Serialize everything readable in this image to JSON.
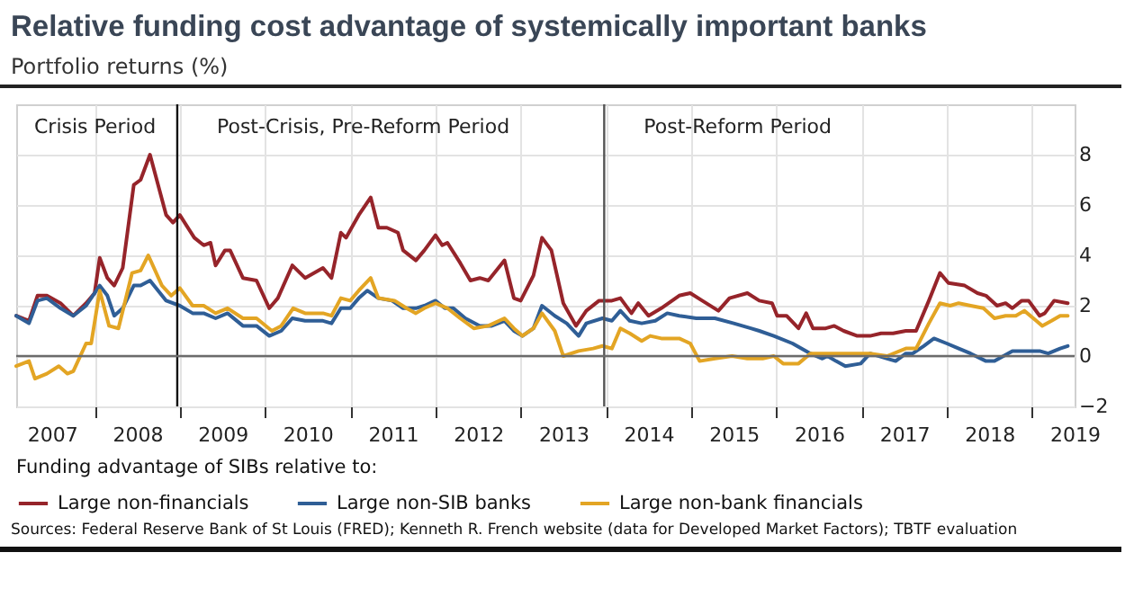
{
  "chart_data": {
    "type": "line",
    "title": "Relative funding cost advantage of systemically important banks",
    "subtitle": "Portfolio returns (%)",
    "legend_title": "Funding advantage of SIBs relative to:",
    "annotations": [
      "Crisis Period",
      "Post-Crisis, Pre-Reform Period",
      "Post-Reform Period",
      "Sources: Federal Reserve Bank of St Louis (FRED); Kenneth R. French website (data for Developed Market Factors); TBTF evaluation"
    ],
    "series": [
      {
        "name": "Large non-financials",
        "color": "#96242a",
        "x": [
          2007.08,
          2007.23,
          2007.33,
          2007.44,
          2007.6,
          2007.75,
          2007.9,
          2008.0,
          2008.06,
          2008.15,
          2008.23,
          2008.33,
          2008.46,
          2008.54,
          2008.65,
          2008.84,
          2008.92,
          2009.0,
          2009.17,
          2009.28,
          2009.36,
          2009.42,
          2009.53,
          2009.59,
          2009.74,
          2009.9,
          2010.05,
          2010.15,
          2010.32,
          2010.47,
          2010.68,
          2010.78,
          2010.89,
          2010.95,
          2011.1,
          2011.24,
          2011.33,
          2011.43,
          2011.56,
          2011.62,
          2011.77,
          2011.87,
          2012.0,
          2012.08,
          2012.14,
          2012.29,
          2012.41,
          2012.52,
          2012.62,
          2012.81,
          2012.92,
          2013.0,
          2013.15,
          2013.25,
          2013.36,
          2013.5,
          2013.65,
          2013.77,
          2013.92,
          2014.07,
          2014.17,
          2014.3,
          2014.38,
          2014.5,
          2014.65,
          2014.86,
          2014.99,
          2015.13,
          2015.32,
          2015.45,
          2015.66,
          2015.8,
          2015.95,
          2016.01,
          2016.12,
          2016.26,
          2016.35,
          2016.43,
          2016.58,
          2016.68,
          2016.79,
          2016.95,
          2017.1,
          2017.23,
          2017.37,
          2017.52,
          2017.64,
          2017.79,
          2017.92,
          2018.02,
          2018.21,
          2018.36,
          2018.46,
          2018.59,
          2018.69,
          2018.77,
          2018.88,
          2018.96,
          2019.09,
          2019.15,
          2019.26,
          2019.42
        ],
        "values": [
          1.6,
          1.4,
          2.4,
          2.4,
          2.1,
          1.6,
          2.1,
          2.5,
          3.9,
          3.1,
          2.8,
          3.5,
          6.8,
          7.0,
          8.0,
          5.6,
          5.3,
          5.6,
          4.7,
          4.4,
          4.5,
          3.6,
          4.2,
          4.2,
          3.1,
          3.0,
          1.9,
          2.3,
          3.6,
          3.1,
          3.5,
          3.1,
          4.9,
          4.7,
          5.6,
          6.3,
          5.1,
          5.1,
          4.9,
          4.2,
          3.8,
          4.2,
          4.8,
          4.4,
          4.5,
          3.7,
          3.0,
          3.1,
          3.0,
          3.8,
          2.3,
          2.2,
          3.2,
          4.7,
          4.2,
          2.1,
          1.2,
          1.8,
          2.2,
          2.2,
          2.3,
          1.7,
          2.1,
          1.6,
          1.9,
          2.4,
          2.5,
          2.2,
          1.8,
          2.3,
          2.5,
          2.2,
          2.1,
          1.6,
          1.6,
          1.1,
          1.7,
          1.1,
          1.1,
          1.2,
          1.0,
          0.8,
          0.8,
          0.9,
          0.9,
          1.0,
          1.0,
          2.2,
          3.3,
          2.9,
          2.8,
          2.5,
          2.4,
          2.0,
          2.1,
          1.9,
          2.2,
          2.2,
          1.6,
          1.7,
          2.2,
          2.1
        ]
      },
      {
        "name": "Large non-SIB banks",
        "color": "#2f5e96",
        "x": [
          2007.08,
          2007.23,
          2007.33,
          2007.44,
          2007.6,
          2007.75,
          2007.9,
          2008.06,
          2008.15,
          2008.23,
          2008.33,
          2008.46,
          2008.54,
          2008.65,
          2008.84,
          2009.0,
          2009.15,
          2009.28,
          2009.42,
          2009.56,
          2009.74,
          2009.9,
          2010.05,
          2010.19,
          2010.32,
          2010.47,
          2010.68,
          2010.78,
          2010.89,
          2011.0,
          2011.1,
          2011.2,
          2011.33,
          2011.49,
          2011.62,
          2011.77,
          2011.87,
          2012.0,
          2012.11,
          2012.21,
          2012.35,
          2012.52,
          2012.66,
          2012.81,
          2012.92,
          2013.02,
          2013.15,
          2013.25,
          2013.4,
          2013.54,
          2013.68,
          2013.77,
          2013.96,
          2014.07,
          2014.17,
          2014.28,
          2014.42,
          2014.58,
          2014.72,
          2014.86,
          2015.06,
          2015.28,
          2015.5,
          2015.7,
          2015.8,
          2015.97,
          2016.19,
          2016.4,
          2016.54,
          2016.6,
          2016.7,
          2016.81,
          2016.99,
          2017.1,
          2017.3,
          2017.4,
          2017.52,
          2017.6,
          2017.73,
          2017.85,
          2018.0,
          2018.14,
          2018.28,
          2018.46,
          2018.56,
          2018.77,
          2018.91,
          2019.09,
          2019.19,
          2019.33,
          2019.42
        ],
        "values": [
          1.6,
          1.3,
          2.2,
          2.3,
          1.9,
          1.6,
          2.0,
          2.8,
          2.4,
          1.6,
          1.9,
          2.8,
          2.8,
          3.0,
          2.2,
          2.0,
          1.7,
          1.7,
          1.5,
          1.7,
          1.2,
          1.2,
          0.8,
          1.0,
          1.5,
          1.4,
          1.4,
          1.3,
          1.9,
          1.9,
          2.3,
          2.6,
          2.3,
          2.2,
          1.9,
          1.9,
          2.0,
          2.2,
          1.9,
          1.9,
          1.5,
          1.2,
          1.2,
          1.4,
          1.0,
          0.8,
          1.1,
          2.0,
          1.6,
          1.3,
          0.8,
          1.3,
          1.5,
          1.4,
          1.8,
          1.4,
          1.3,
          1.4,
          1.7,
          1.6,
          1.5,
          1.5,
          1.3,
          1.1,
          1.0,
          0.8,
          0.5,
          0.1,
          -0.1,
          0.0,
          -0.2,
          -0.4,
          -0.3,
          0.1,
          -0.1,
          -0.2,
          0.1,
          0.1,
          0.4,
          0.7,
          0.5,
          0.3,
          0.1,
          -0.2,
          -0.2,
          0.2,
          0.2,
          0.2,
          0.1,
          0.3,
          0.4
        ]
      },
      {
        "name": "Large non-bank financials",
        "color": "#e3a524",
        "x": [
          2007.08,
          2007.23,
          2007.3,
          2007.44,
          2007.58,
          2007.68,
          2007.75,
          2007.9,
          2007.96,
          2008.06,
          2008.17,
          2008.28,
          2008.44,
          2008.54,
          2008.63,
          2008.79,
          2008.9,
          2009.0,
          2009.15,
          2009.28,
          2009.42,
          2009.56,
          2009.74,
          2009.9,
          2010.08,
          2010.19,
          2010.33,
          2010.47,
          2010.68,
          2010.78,
          2010.89,
          2011.0,
          2011.1,
          2011.24,
          2011.33,
          2011.52,
          2011.66,
          2011.77,
          2011.87,
          2012.0,
          2012.14,
          2012.29,
          2012.45,
          2012.62,
          2012.81,
          2012.92,
          2013.02,
          2013.15,
          2013.25,
          2013.4,
          2013.5,
          2013.68,
          2013.85,
          2013.96,
          2014.07,
          2014.17,
          2014.28,
          2014.42,
          2014.52,
          2014.65,
          2014.86,
          2014.99,
          2015.1,
          2015.28,
          2015.48,
          2015.66,
          2015.84,
          2015.97,
          2016.08,
          2016.26,
          2016.4,
          2016.54,
          2016.68,
          2016.88,
          2017.1,
          2017.3,
          2017.52,
          2017.64,
          2017.79,
          2017.92,
          2018.04,
          2018.14,
          2018.28,
          2018.43,
          2018.56,
          2018.69,
          2018.81,
          2018.91,
          2019.05,
          2019.12,
          2019.23,
          2019.33,
          2019.42
        ],
        "values": [
          -0.4,
          -0.2,
          -0.9,
          -0.7,
          -0.4,
          -0.7,
          -0.6,
          0.5,
          0.5,
          2.6,
          1.2,
          1.1,
          3.3,
          3.4,
          4.0,
          2.8,
          2.4,
          2.7,
          2.0,
          2.0,
          1.7,
          1.9,
          1.5,
          1.5,
          1.0,
          1.2,
          1.9,
          1.7,
          1.7,
          1.6,
          2.3,
          2.2,
          2.6,
          3.1,
          2.3,
          2.2,
          1.9,
          1.7,
          1.9,
          2.1,
          1.9,
          1.5,
          1.1,
          1.2,
          1.5,
          1.1,
          0.8,
          1.1,
          1.7,
          1.0,
          0.0,
          0.2,
          0.3,
          0.4,
          0.3,
          1.1,
          0.9,
          0.6,
          0.8,
          0.7,
          0.7,
          0.5,
          -0.2,
          -0.1,
          0.0,
          -0.1,
          -0.1,
          0.0,
          -0.3,
          -0.3,
          0.1,
          0.1,
          0.1,
          0.1,
          0.1,
          0.0,
          0.3,
          0.3,
          1.3,
          2.1,
          2.0,
          2.1,
          2.0,
          1.9,
          1.5,
          1.6,
          1.6,
          1.8,
          1.4,
          1.2,
          1.4,
          1.6,
          1.6
        ]
      }
    ],
    "xlim": [
      2007.08,
      2019.5
    ],
    "xticks": [
      {
        "value": 2007.5,
        "label": "2007"
      },
      {
        "value": 2008,
        "label": null
      },
      {
        "value": 2008.5,
        "label": "2008"
      },
      {
        "value": 2009,
        "label": null
      },
      {
        "value": 2009.5,
        "label": "2009"
      },
      {
        "value": 2010,
        "label": null
      },
      {
        "value": 2010.5,
        "label": "2010"
      },
      {
        "value": 2011,
        "label": null
      },
      {
        "value": 2011.5,
        "label": "2011"
      },
      {
        "value": 2012,
        "label": null
      },
      {
        "value": 2012.5,
        "label": "2012"
      },
      {
        "value": 2013,
        "label": null
      },
      {
        "value": 2013.5,
        "label": "2013"
      },
      {
        "value": 2014,
        "label": null
      },
      {
        "value": 2014.5,
        "label": "2014"
      },
      {
        "value": 2015,
        "label": null
      },
      {
        "value": 2015.5,
        "label": "2015"
      },
      {
        "value": 2016,
        "label": null
      },
      {
        "value": 2016.5,
        "label": "2016"
      },
      {
        "value": 2017,
        "label": null
      },
      {
        "value": 2017.5,
        "label": "2017"
      },
      {
        "value": 2018,
        "label": null
      },
      {
        "value": 2018.5,
        "label": "2018"
      },
      {
        "value": 2019,
        "label": null
      },
      {
        "value": 2019.5,
        "label": "2019"
      }
    ],
    "ylim": [
      -2,
      10
    ],
    "yticks": [
      -2,
      0,
      2,
      4,
      6,
      8
    ],
    "ref_lines": [
      {
        "axis": "x",
        "value": 2008.97,
        "color": "#111111"
      },
      {
        "axis": "x",
        "value": 2013.98,
        "color": "#555555"
      },
      {
        "axis": "y",
        "value": 0,
        "color": "#6b6b6b"
      }
    ],
    "grid": true,
    "legend": "bottom",
    "marker": "none",
    "line_style": "solid"
  }
}
